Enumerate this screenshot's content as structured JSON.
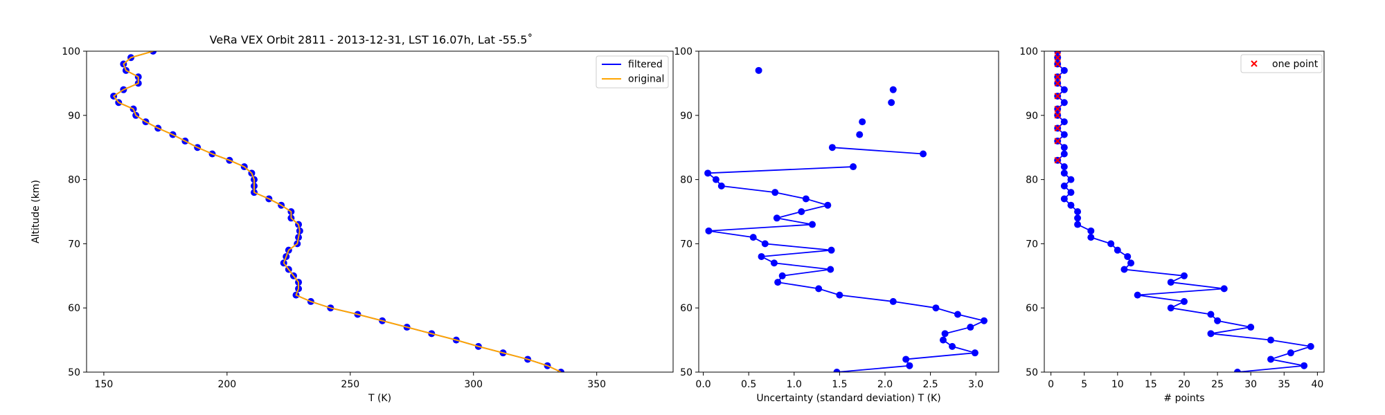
{
  "chart_data": [
    {
      "type": "line",
      "title": "VeRa VEX Orbit 2811 - 2013-12-31, LST 16.07h, Lat -55.5˚",
      "xlabel": "T (K)",
      "ylabel": "Altitude (km)",
      "xlim": [
        143,
        381
      ],
      "ylim": [
        50,
        100
      ],
      "xticks": [
        "150",
        "200",
        "250",
        "300",
        "350"
      ],
      "yticks": [
        "50",
        "60",
        "70",
        "80",
        "90",
        "100"
      ],
      "legend": {
        "placement": "top-right",
        "entries": [
          "filtered",
          "original"
        ]
      },
      "series": [
        {
          "name": "filtered",
          "color": "#0000ff",
          "markers": true,
          "points": [
            [
              335.5,
              50
            ],
            [
              330,
              51
            ],
            [
              322,
              52
            ],
            [
              312,
              53
            ],
            [
              302,
              54
            ],
            [
              293,
              55
            ],
            [
              283,
              56
            ],
            [
              273,
              57
            ],
            [
              263,
              58
            ],
            [
              253,
              59
            ],
            [
              242,
              60
            ],
            [
              234,
              61
            ],
            [
              228,
              62
            ],
            [
              229,
              63
            ],
            [
              229,
              64
            ],
            [
              227,
              65
            ],
            [
              225,
              66
            ],
            [
              223,
              67
            ],
            [
              224,
              68
            ],
            [
              225,
              69
            ],
            [
              228.5,
              70
            ],
            [
              229,
              71
            ],
            [
              229.5,
              72
            ],
            [
              229,
              73
            ],
            [
              226,
              74
            ],
            [
              226,
              75
            ],
            [
              222,
              76
            ],
            [
              217,
              77
            ],
            [
              211,
              78
            ],
            [
              211,
              79
            ],
            [
              211,
              80
            ],
            [
              210,
              81
            ],
            [
              207,
              82
            ],
            [
              201,
              83
            ],
            [
              194,
              84
            ],
            [
              188,
              85
            ],
            [
              183,
              86
            ],
            [
              178,
              87
            ],
            [
              172,
              88
            ],
            [
              167,
              89
            ],
            [
              163,
              90
            ],
            [
              162,
              91
            ],
            [
              156,
              92
            ],
            [
              154,
              93
            ],
            [
              158,
              94
            ],
            [
              164,
              95
            ],
            [
              164,
              96
            ],
            [
              159,
              97
            ],
            [
              158,
              98
            ],
            [
              161,
              99
            ],
            [
              170,
              100
            ]
          ]
        },
        {
          "name": "original",
          "color": "#ffa500",
          "markers": false,
          "points": [
            [
              335.5,
              50
            ],
            [
              330,
              51
            ],
            [
              322,
              52
            ],
            [
              312,
              53
            ],
            [
              302,
              54
            ],
            [
              293,
              55
            ],
            [
              283,
              56
            ],
            [
              273,
              57
            ],
            [
              263,
              58
            ],
            [
              253,
              59
            ],
            [
              242,
              60
            ],
            [
              234,
              61
            ],
            [
              228,
              62
            ],
            [
              229,
              63
            ],
            [
              229,
              64
            ],
            [
              227,
              65
            ],
            [
              225,
              66
            ],
            [
              223,
              67
            ],
            [
              224,
              68
            ],
            [
              225,
              69
            ],
            [
              228.5,
              70
            ],
            [
              229,
              71
            ],
            [
              229.5,
              72
            ],
            [
              229,
              73
            ],
            [
              226,
              74
            ],
            [
              226,
              75
            ],
            [
              222,
              76
            ],
            [
              217,
              77
            ],
            [
              211,
              78
            ],
            [
              211,
              79
            ],
            [
              211,
              80
            ],
            [
              210,
              81
            ],
            [
              207,
              82
            ],
            [
              201,
              83
            ],
            [
              194,
              84
            ],
            [
              188,
              85
            ],
            [
              183,
              86
            ],
            [
              178,
              87
            ],
            [
              172,
              88
            ],
            [
              167,
              89
            ],
            [
              163,
              90
            ],
            [
              162,
              91
            ],
            [
              156,
              92
            ],
            [
              154,
              93
            ],
            [
              158,
              94
            ],
            [
              164,
              95
            ],
            [
              164,
              96
            ],
            [
              159,
              97
            ],
            [
              158,
              98
            ],
            [
              161,
              99
            ],
            [
              170,
              100
            ]
          ]
        }
      ]
    },
    {
      "type": "line",
      "title": "",
      "xlabel": "Uncertainty (standard deviation) T (K)",
      "ylabel": "",
      "xlim": [
        -0.05,
        3.25
      ],
      "ylim": [
        50,
        100
      ],
      "xticks": [
        "0.0",
        "0.5",
        "1.0",
        "1.5",
        "2.0",
        "2.5",
        "3.0"
      ],
      "yticks": [
        "50",
        "60",
        "70",
        "80",
        "90",
        "100"
      ],
      "series": [
        {
          "color": "#0000ff",
          "markers": true,
          "segments": [
            [
              [
                1.47,
                50
              ],
              [
                2.27,
                51
              ],
              [
                2.23,
                52
              ],
              [
                2.99,
                53
              ],
              [
                2.74,
                54
              ],
              [
                2.64,
                55
              ],
              [
                2.66,
                56
              ],
              [
                2.94,
                57
              ],
              [
                3.09,
                58
              ],
              [
                2.8,
                59
              ],
              [
                2.56,
                60
              ],
              [
                2.09,
                61
              ],
              [
                1.5,
                62
              ],
              [
                1.27,
                63
              ],
              [
                0.82,
                64
              ],
              [
                0.87,
                65
              ],
              [
                1.4,
                66
              ],
              [
                0.78,
                67
              ],
              [
                0.64,
                68
              ],
              [
                1.41,
                69
              ],
              [
                0.68,
                70
              ],
              [
                0.55,
                71
              ],
              [
                0.06,
                72
              ],
              [
                1.2,
                73
              ],
              [
                0.81,
                74
              ],
              [
                1.08,
                75
              ],
              [
                1.37,
                76
              ],
              [
                1.13,
                77
              ],
              [
                0.79,
                78
              ],
              [
                0.2,
                79
              ],
              [
                0.14,
                80
              ],
              [
                0.05,
                81
              ],
              [
                1.65,
                82
              ]
            ],
            [
              [
                1.42,
                85
              ],
              [
                2.42,
                84
              ]
            ]
          ],
          "isolated_points": [
            [
              1.72,
              87
            ],
            [
              1.75,
              89
            ],
            [
              2.07,
              92
            ],
            [
              2.09,
              94
            ],
            [
              0.61,
              97
            ]
          ]
        }
      ]
    },
    {
      "type": "line",
      "title": "",
      "xlabel": "# points",
      "ylabel": "",
      "xlim": [
        -1,
        41
      ],
      "ylim": [
        50,
        100
      ],
      "xticks": [
        "0",
        "5",
        "10",
        "15",
        "20",
        "25",
        "30",
        "35",
        "40"
      ],
      "yticks": [
        "50",
        "60",
        "70",
        "80",
        "90",
        "100"
      ],
      "legend": {
        "placement": "top-right",
        "entries": [
          "one point"
        ]
      },
      "series": [
        {
          "color": "#0000ff",
          "markers": true,
          "points": [
            [
              28,
              50
            ],
            [
              38,
              51
            ],
            [
              33,
              52
            ],
            [
              36,
              53
            ],
            [
              39,
              54
            ],
            [
              33,
              55
            ],
            [
              24,
              56
            ],
            [
              30,
              57
            ],
            [
              25,
              58
            ],
            [
              24,
              59
            ],
            [
              18,
              60
            ],
            [
              20,
              61
            ],
            [
              13,
              62
            ],
            [
              26,
              63
            ],
            [
              18,
              64
            ],
            [
              20,
              65
            ],
            [
              11,
              66
            ],
            [
              12,
              67
            ],
            [
              11.5,
              68
            ],
            [
              10,
              69
            ],
            [
              9,
              70
            ],
            [
              6,
              71
            ],
            [
              6,
              72
            ],
            [
              4,
              73
            ],
            [
              4,
              74
            ],
            [
              4,
              75
            ],
            [
              3,
              76
            ],
            [
              2,
              77
            ],
            [
              3,
              78
            ],
            [
              2,
              79
            ],
            [
              3,
              80
            ],
            [
              2,
              81
            ],
            [
              2,
              82
            ],
            [
              1,
              83
            ],
            [
              2,
              84
            ],
            [
              2,
              85
            ],
            [
              1,
              86
            ],
            [
              2,
              87
            ],
            [
              1,
              88
            ],
            [
              2,
              89
            ],
            [
              1,
              90
            ],
            [
              1,
              91
            ],
            [
              2,
              92
            ],
            [
              1,
              93
            ],
            [
              2,
              94
            ],
            [
              1,
              95
            ],
            [
              1,
              96
            ],
            [
              2,
              97
            ],
            [
              1,
              98
            ],
            [
              1,
              99
            ],
            [
              1,
              100
            ]
          ]
        },
        {
          "name": "one point",
          "color": "#ff0000",
          "marker": "x",
          "points": [
            [
              1,
              83
            ],
            [
              1,
              86
            ],
            [
              1,
              88
            ],
            [
              1,
              90
            ],
            [
              1,
              91
            ],
            [
              1,
              93
            ],
            [
              1,
              95
            ],
            [
              1,
              96
            ],
            [
              1,
              98
            ],
            [
              1,
              99
            ],
            [
              1,
              100
            ]
          ]
        }
      ]
    }
  ]
}
